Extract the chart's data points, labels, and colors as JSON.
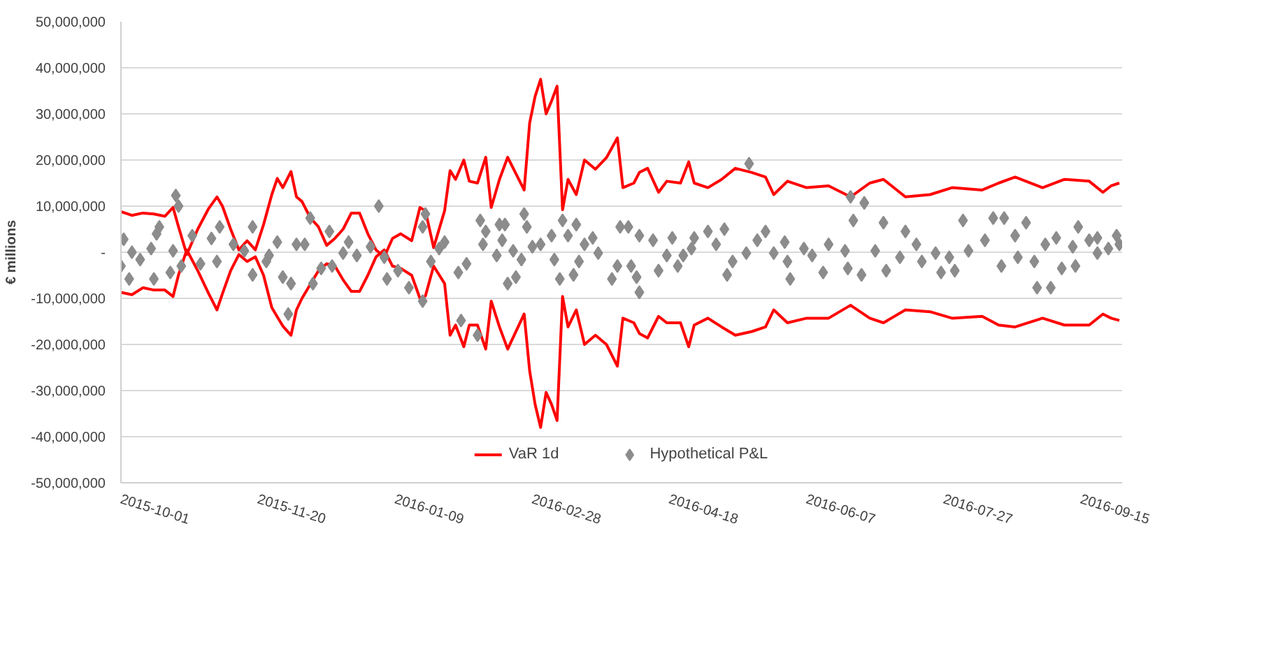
{
  "chart_data": {
    "type": "line",
    "ylabel": "€ millions",
    "xlim": [
      "2015-10-01",
      "2016-09-30"
    ],
    "xticks": [
      "2015-10-01",
      "2015-11-20",
      "2016-01-09",
      "2016-02-28",
      "2016-04-18",
      "2016-06-07",
      "2016-07-27",
      "2016-09-15"
    ],
    "ylim": [
      -50000000,
      50000000
    ],
    "yticks": [
      {
        "value": -50000000,
        "label": "-50,000,000"
      },
      {
        "value": -40000000,
        "label": "-40,000,000"
      },
      {
        "value": -30000000,
        "label": "-30,000,000"
      },
      {
        "value": -20000000,
        "label": "-20,000,000"
      },
      {
        "value": -10000000,
        "label": "-10,000,000"
      },
      {
        "value": 0,
        "label": "-"
      },
      {
        "value": 10000000,
        "label": "10,000,000"
      },
      {
        "value": 20000000,
        "label": "20,000,000"
      },
      {
        "value": 30000000,
        "label": "30,000,000"
      },
      {
        "value": 40000000,
        "label": "40,000,000"
      },
      {
        "value": 50000000,
        "label": "50,000,000"
      }
    ],
    "grid": "y",
    "legend": "bottom",
    "line_style": "solid",
    "x": [
      "2015-10-01",
      "2015-10-05",
      "2015-10-09",
      "2015-10-13",
      "2015-10-17",
      "2015-10-20",
      "2015-10-22",
      "2015-10-25",
      "2015-10-29",
      "2015-11-02",
      "2015-11-05",
      "2015-11-07",
      "2015-11-10",
      "2015-11-13",
      "2015-11-16",
      "2015-11-19",
      "2015-11-22",
      "2015-11-25",
      "2015-11-27",
      "2015-11-29",
      "2015-12-02",
      "2015-12-04",
      "2015-12-06",
      "2015-12-09",
      "2015-12-12",
      "2015-12-15",
      "2015-12-18",
      "2015-12-21",
      "2015-12-24",
      "2015-12-27",
      "2015-12-30",
      "2016-01-02",
      "2016-01-05",
      "2016-01-08",
      "2016-01-11",
      "2016-01-15",
      "2016-01-18",
      "2016-01-20",
      "2016-01-23",
      "2016-01-27",
      "2016-01-29",
      "2016-01-31",
      "2016-02-03",
      "2016-02-05",
      "2016-02-08",
      "2016-02-11",
      "2016-02-13",
      "2016-02-16",
      "2016-02-19",
      "2016-02-25",
      "2016-02-27",
      "2016-02-29",
      "2016-03-02",
      "2016-03-04",
      "2016-03-06",
      "2016-03-08",
      "2016-03-10",
      "2016-03-12",
      "2016-03-15",
      "2016-03-18",
      "2016-03-22",
      "2016-03-26",
      "2016-03-30",
      "2016-04-01",
      "2016-04-05",
      "2016-04-07",
      "2016-04-10",
      "2016-04-14",
      "2016-04-17",
      "2016-04-22",
      "2016-04-25",
      "2016-04-27",
      "2016-05-02",
      "2016-05-07",
      "2016-05-12",
      "2016-05-18",
      "2016-05-23",
      "2016-05-26",
      "2016-05-31",
      "2016-06-07",
      "2016-06-15",
      "2016-06-23",
      "2016-06-30",
      "2016-07-05",
      "2016-07-13",
      "2016-07-22",
      "2016-07-30",
      "2016-08-10",
      "2016-08-16",
      "2016-08-22",
      "2016-09-01",
      "2016-09-09",
      "2016-09-18",
      "2016-09-23",
      "2016-09-26",
      "2016-09-29"
    ],
    "series": [
      {
        "type": "line",
        "name": "VaR 1d",
        "color": "#ff0000",
        "values": [
          8800000,
          8000000,
          8500000,
          8300000,
          7800000,
          9700000,
          5500000,
          -500000,
          5000000,
          9500000,
          12000000,
          10000000,
          5000000,
          500000,
          2500000,
          500000,
          6000000,
          12500000,
          16000000,
          14000000,
          17500000,
          12000000,
          11000000,
          7500000,
          5500000,
          1500000,
          3000000,
          5000000,
          8500000,
          8500000,
          4000000,
          500000,
          -1000000,
          3000000,
          4000000,
          2500000,
          9700000,
          9000000,
          1000000,
          9000000,
          17700000,
          15800000,
          20000000,
          15400000,
          15000000,
          20600000,
          9700000,
          15800000,
          20600000,
          13500000,
          28000000,
          33800000,
          37500000,
          30000000,
          32800000,
          36000000,
          9200000,
          15800000,
          12500000,
          20000000,
          18000000,
          20500000,
          24800000,
          14000000,
          15000000,
          17300000,
          18200000,
          13000000,
          15400000,
          15000000,
          19600000,
          15000000,
          14000000,
          15800000,
          18200000,
          17300000,
          16300000,
          12500000,
          15400000,
          14000000,
          14400000,
          12000000,
          15000000,
          15800000,
          12000000,
          12500000,
          14000000,
          13500000,
          15000000,
          16300000,
          14000000,
          15800000,
          15400000,
          13000000,
          14400000,
          15000000
        ]
      },
      {
        "type": "line",
        "color": "#ff0000",
        "values": [
          -8700000,
          -9200000,
          -7700000,
          -8200000,
          -8200000,
          -9600000,
          -4900000,
          500000,
          -4000000,
          -9000000,
          -12500000,
          -9000000,
          -4000000,
          -500000,
          -2000000,
          -1000000,
          -5000000,
          -12000000,
          -14000000,
          -16000000,
          -18000000,
          -12500000,
          -10000000,
          -7000000,
          -4000000,
          -2500000,
          -3000000,
          -6000000,
          -8500000,
          -8500000,
          -5000000,
          -1000000,
          500000,
          -3000000,
          -3500000,
          -5000000,
          -10000000,
          -9500000,
          -3000000,
          -6800000,
          -18000000,
          -15800000,
          -20500000,
          -15800000,
          -15800000,
          -21000000,
          -10600000,
          -16200000,
          -21000000,
          -13400000,
          -25700000,
          -33000000,
          -38000000,
          -30400000,
          -33000000,
          -36500000,
          -9600000,
          -16200000,
          -12500000,
          -20000000,
          -18000000,
          -20000000,
          -24700000,
          -14300000,
          -15300000,
          -17600000,
          -18600000,
          -13900000,
          -15300000,
          -15300000,
          -20500000,
          -15800000,
          -14300000,
          -16200000,
          -18000000,
          -17200000,
          -16200000,
          -12500000,
          -15300000,
          -14300000,
          -14300000,
          -11500000,
          -14300000,
          -15300000,
          -12500000,
          -12900000,
          -14300000,
          -13900000,
          -15800000,
          -16200000,
          -14300000,
          -15800000,
          -15800000,
          -13400000,
          -14300000,
          -14800000
        ]
      },
      {
        "type": "scatter",
        "marker": "diamond",
        "name": "Hypothetical P&L",
        "color": "#8c8c8c",
        "x": [
          "2015-10-02",
          "2015-10-01",
          "2015-10-05",
          "2015-10-04",
          "2015-10-08",
          "2015-10-12",
          "2015-10-14",
          "2015-10-13",
          "2015-10-15",
          "2015-10-19",
          "2015-10-20",
          "2015-10-21",
          "2015-10-22",
          "2015-10-23",
          "2015-10-27",
          "2015-10-30",
          "2015-11-03",
          "2015-11-05",
          "2015-11-06",
          "2015-11-11",
          "2015-11-15",
          "2015-11-18",
          "2015-11-18",
          "2015-11-24",
          "2015-11-23",
          "2015-11-27",
          "2015-11-29",
          "2015-12-02",
          "2015-12-04",
          "2015-12-01",
          "2015-12-07",
          "2015-12-09",
          "2015-12-10",
          "2015-12-13",
          "2015-12-16",
          "2015-12-17",
          "2015-12-21",
          "2015-12-23",
          "2015-12-26",
          "2015-12-31",
          "2016-01-03",
          "2016-01-05",
          "2016-01-06",
          "2016-01-10",
          "2016-01-14",
          "2016-01-19",
          "2016-01-19",
          "2016-01-20",
          "2016-01-22",
          "2016-01-25",
          "2016-01-27",
          "2016-02-01",
          "2016-02-04",
          "2016-02-02",
          "2016-02-08",
          "2016-02-09",
          "2016-02-11",
          "2016-02-10",
          "2016-02-15",
          "2016-02-16",
          "2016-02-18",
          "2016-02-17",
          "2016-02-19",
          "2016-02-21",
          "2016-02-22",
          "2016-02-24",
          "2016-02-25",
          "2016-02-26",
          "2016-02-28",
          "2016-03-02",
          "2016-03-06",
          "2016-03-07",
          "2016-03-09",
          "2016-03-10",
          "2016-03-12",
          "2016-03-14",
          "2016-03-15",
          "2016-03-16",
          "2016-03-18",
          "2016-03-21",
          "2016-03-23",
          "2016-03-28",
          "2016-03-30",
          "2016-03-31",
          "2016-04-03",
          "2016-04-04",
          "2016-04-06",
          "2016-04-07",
          "2016-04-07",
          "2016-04-12",
          "2016-04-14",
          "2016-04-17",
          "2016-04-19",
          "2016-04-21",
          "2016-04-23",
          "2016-04-26",
          "2016-04-27",
          "2016-05-02",
          "2016-05-05",
          "2016-05-08",
          "2016-05-09",
          "2016-05-11",
          "2016-05-16",
          "2016-05-17",
          "2016-05-20",
          "2016-05-23",
          "2016-05-26",
          "2016-05-30",
          "2016-05-31",
          "2016-06-01",
          "2016-06-06",
          "2016-06-09",
          "2016-06-15",
          "2016-06-13",
          "2016-06-21",
          "2016-06-22",
          "2016-06-23",
          "2016-06-24",
          "2016-06-28",
          "2016-06-27",
          "2016-07-02",
          "2016-07-05",
          "2016-07-06",
          "2016-07-11",
          "2016-07-13",
          "2016-07-17",
          "2016-07-19",
          "2016-07-24",
          "2016-07-26",
          "2016-07-29",
          "2016-07-31",
          "2016-08-03",
          "2016-08-05",
          "2016-08-11",
          "2016-08-14",
          "2016-08-18",
          "2016-08-17",
          "2016-08-22",
          "2016-08-23",
          "2016-08-26",
          "2016-08-29",
          "2016-08-30",
          "2016-09-04",
          "2016-09-02",
          "2016-09-06",
          "2016-09-08",
          "2016-09-12",
          "2016-09-14",
          "2016-09-13",
          "2016-09-18",
          "2016-09-21",
          "2016-09-21",
          "2016-09-25",
          "2016-09-28",
          "2016-09-29"
        ],
        "values": [
          2800000,
          -3000000,
          0,
          -5800000,
          -1600000,
          800000,
          4000000,
          -5800000,
          5500000,
          -4400000,
          300000,
          12300000,
          10000000,
          -3000000,
          3600000,
          -2500000,
          3000000,
          -2000000,
          5500000,
          1700000,
          300000,
          5500000,
          -4900000,
          -700000,
          -2000000,
          2200000,
          -5400000,
          -6800000,
          1700000,
          -13400000,
          1700000,
          7400000,
          -6800000,
          -3500000,
          4500000,
          -3000000,
          -200000,
          2200000,
          -700000,
          1200000,
          10000000,
          -1100000,
          -5800000,
          -4000000,
          -7700000,
          -10600000,
          5500000,
          8300000,
          -2000000,
          800000,
          2200000,
          -4400000,
          -2500000,
          -14800000,
          -18000000,
          6900000,
          4500000,
          1700000,
          -700000,
          6000000,
          6000000,
          2600000,
          -6800000,
          300000,
          -5400000,
          -1600000,
          8300000,
          5500000,
          1200000,
          1700000,
          3600000,
          -1600000,
          -5800000,
          6900000,
          3600000,
          -4900000,
          6000000,
          -2000000,
          1700000,
          3100000,
          -200000,
          -5800000,
          -3000000,
          5500000,
          5500000,
          -3000000,
          -5400000,
          -8700000,
          3600000,
          2600000,
          -4000000,
          -700000,
          3100000,
          -3000000,
          -700000,
          800000,
          3100000,
          4500000,
          1700000,
          5000000,
          -4900000,
          -2000000,
          -200000,
          19200000,
          2600000,
          4500000,
          -200000,
          2200000,
          -2000000,
          -5800000,
          800000,
          -700000,
          1700000,
          -4400000,
          300000,
          -3500000,
          12000000,
          6900000,
          10700000,
          -4900000,
          300000,
          6400000,
          -4000000,
          -1100000,
          4500000,
          1700000,
          -2000000,
          -200000,
          -4400000,
          -1100000,
          -4000000,
          6900000,
          300000,
          2600000,
          7400000,
          7400000,
          -3000000,
          3600000,
          -1100000,
          6400000,
          -2000000,
          -7700000,
          -7700000,
          1700000,
          3100000,
          -3500000,
          1200000,
          5500000,
          -3000000,
          2600000,
          3100000,
          -200000,
          800000,
          3600000,
          1700000
        ]
      }
    ]
  }
}
